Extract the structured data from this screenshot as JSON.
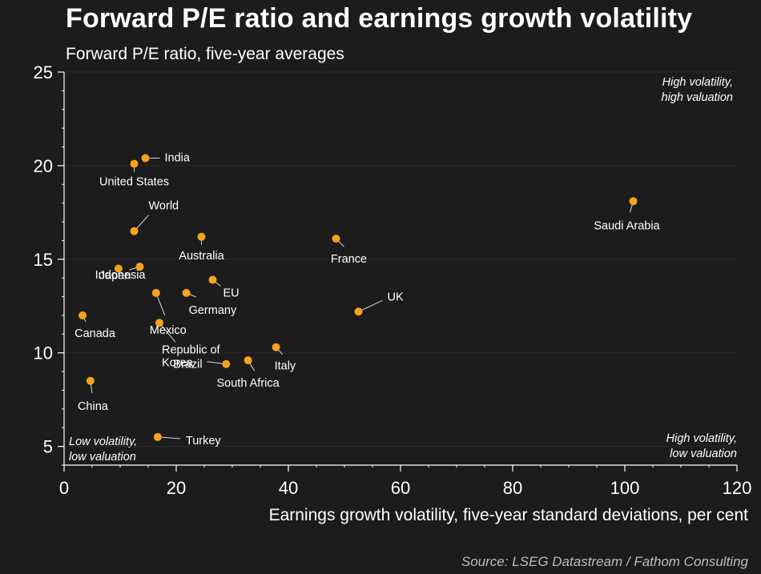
{
  "header": {
    "title": "Forward P/E ratio and earnings growth volatility",
    "subtitle": "Forward P/E ratio, five-year averages"
  },
  "annotations": {
    "top_right": [
      "High volatility,",
      "high valuation"
    ],
    "bottom_right": [
      "High volatility,",
      "low valuation"
    ],
    "bottom_left": [
      "Low volatility,",
      "low valuation"
    ]
  },
  "footer": {
    "source": "Source: LSEG Datastream / Fathom Consulting"
  },
  "colors": {
    "background": "#1c1c1c",
    "point": "#f5a21e",
    "axis": "#ffffff",
    "grid": "#2a2a2a"
  },
  "chart_data": {
    "type": "scatter",
    "title": "Forward P/E ratio and earnings growth volatility",
    "subtitle": "Forward P/E ratio, five-year averages",
    "xlabel": "Earnings growth volatility, five-year standard deviations, per cent",
    "ylabel": "",
    "xlim": [
      0,
      120
    ],
    "ylim": [
      4,
      25
    ],
    "xticks": [
      0,
      20,
      40,
      60,
      80,
      100,
      120
    ],
    "yticks": [
      5,
      10,
      15,
      20,
      25
    ],
    "grid": true,
    "points": [
      {
        "label": "India",
        "x": 14.5,
        "y": 20.4
      },
      {
        "label": "United States",
        "x": 12.5,
        "y": 20.1
      },
      {
        "label": "World",
        "x": 12.5,
        "y": 16.5
      },
      {
        "label": "Australia",
        "x": 24.5,
        "y": 16.2
      },
      {
        "label": "France",
        "x": 48.5,
        "y": 16.1
      },
      {
        "label": "Saudi Arabia",
        "x": 101.5,
        "y": 18.1
      },
      {
        "label": "Japan",
        "x": 9.7,
        "y": 14.5
      },
      {
        "label": "Indonesia",
        "x": 13.5,
        "y": 14.6
      },
      {
        "label": "EU",
        "x": 26.5,
        "y": 13.9
      },
      {
        "label": "Germany",
        "x": 21.8,
        "y": 13.2
      },
      {
        "label": "Mexico",
        "x": 16.4,
        "y": 13.2
      },
      {
        "label": "UK",
        "x": 52.5,
        "y": 12.2
      },
      {
        "label": "Canada",
        "x": 3.3,
        "y": 12.0
      },
      {
        "label": "Republic of Korea",
        "x": 17.0,
        "y": 11.6
      },
      {
        "label": "Italy",
        "x": 37.8,
        "y": 10.3
      },
      {
        "label": "South Africa",
        "x": 32.8,
        "y": 9.6
      },
      {
        "label": "Brazil",
        "x": 28.9,
        "y": 9.4
      },
      {
        "label": "China",
        "x": 4.7,
        "y": 8.5
      },
      {
        "label": "Turkey",
        "x": 16.7,
        "y": 5.5
      }
    ]
  }
}
